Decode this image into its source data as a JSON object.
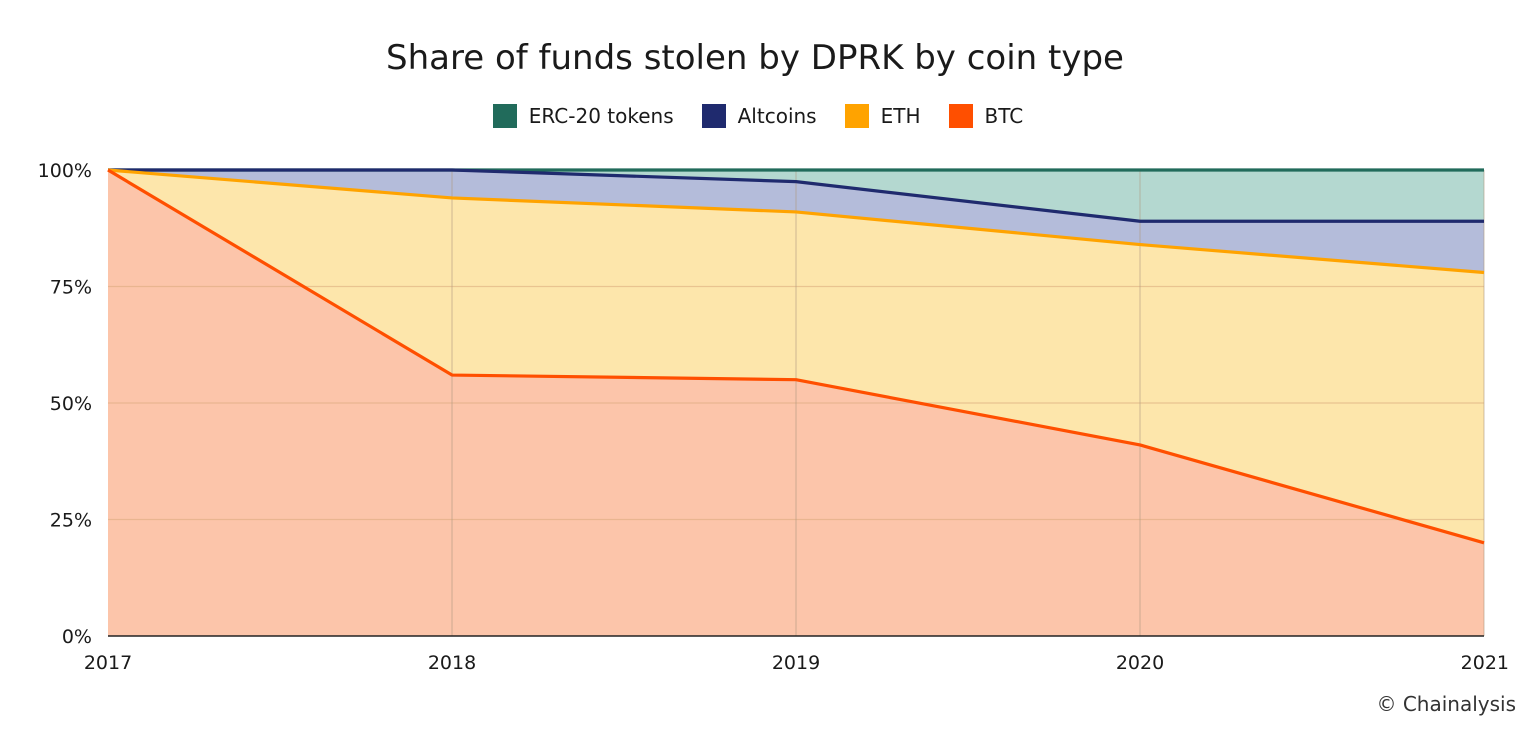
{
  "chart_data": {
    "type": "area",
    "stacked": true,
    "percent": true,
    "title": "Share of funds stolen by DPRK by coin type",
    "x": [
      "2017",
      "2018",
      "2019",
      "2020",
      "2021"
    ],
    "y_ticks": [
      "0%",
      "25%",
      "50%",
      "75%",
      "100%"
    ],
    "ylim": [
      0,
      100
    ],
    "grid": true,
    "legend_position": "top",
    "series": [
      {
        "name": "BTC",
        "color": "#ff4f00",
        "fill": "#fcc5aa",
        "values": [
          100,
          56,
          55,
          41,
          20
        ]
      },
      {
        "name": "ETH",
        "color": "#ffa300",
        "fill": "#fde6ab",
        "values": [
          0,
          38,
          36,
          43,
          58
        ]
      },
      {
        "name": "Altcoins",
        "color": "#1f2a6e",
        "fill": "#b4bcda",
        "values": [
          0,
          6,
          6.5,
          5,
          11
        ]
      },
      {
        "name": "ERC-20 tokens",
        "color": "#216b5b",
        "fill": "#b4d8d0",
        "values": [
          0,
          0,
          2.5,
          11,
          11
        ]
      }
    ],
    "legend_order": [
      "ERC-20 tokens",
      "Altcoins",
      "ETH",
      "BTC"
    ]
  },
  "credit": "© Chainalysis"
}
